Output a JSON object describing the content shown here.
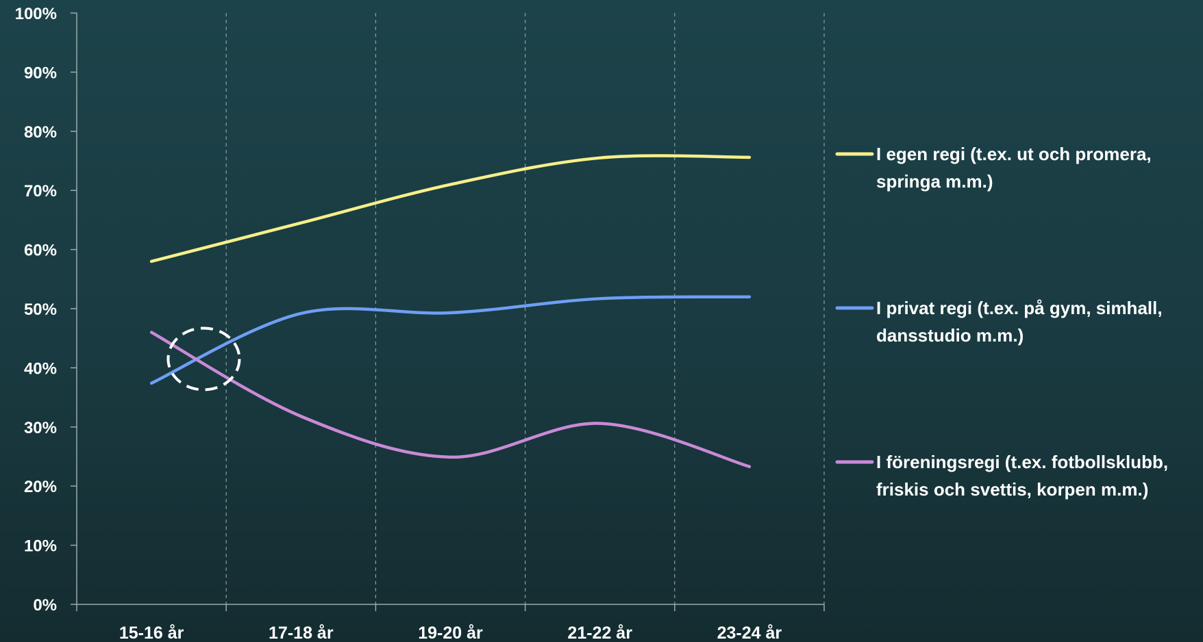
{
  "chart_data": {
    "type": "line",
    "categories": [
      "15-16 år",
      "17-18 år",
      "19-20 år",
      "21-22 år",
      "23-24 år"
    ],
    "ylim": [
      0,
      100
    ],
    "y_ticks": [
      "0%",
      "10%",
      "20%",
      "30%",
      "40%",
      "50%",
      "60%",
      "70%",
      "80%",
      "90%",
      "100%"
    ],
    "grid": "vertical dashed",
    "legend_position": "right",
    "series": [
      {
        "name": "I egen regi (t.ex. ut och promera, springa m.m.)",
        "name_lines": [
          "I egen regi (t.ex. ut och promera,",
          "springa m.m.)"
        ],
        "color": "#f7ef8a",
        "values": [
          58,
          64.5,
          71,
          75.5,
          75.6
        ]
      },
      {
        "name": "I privat regi (t.ex. på gym, simhall, dansstudio m.m.)",
        "name_lines": [
          "I privat regi (t.ex. på gym, simhall,",
          "dansstudio m.m.)"
        ],
        "color": "#6f9ef5",
        "values": [
          37.4,
          49.2,
          49.3,
          51.7,
          52
        ]
      },
      {
        "name": "I föreningsregi (t.ex. fotbollsklubb, friskis och svettis, korpen m.m.)",
        "name_lines": [
          "I föreningsregi (t.ex. fotbollsklubb,",
          "friskis och svettis, korpen m.m.)"
        ],
        "color": "#c98ad6",
        "values": [
          46,
          31.8,
          24.9,
          30.6,
          23.3
        ]
      }
    ],
    "annotations": [
      {
        "type": "dashed-circle",
        "note": "crossing point",
        "x_category": 0.35,
        "y_value": 41.5
      }
    ]
  }
}
